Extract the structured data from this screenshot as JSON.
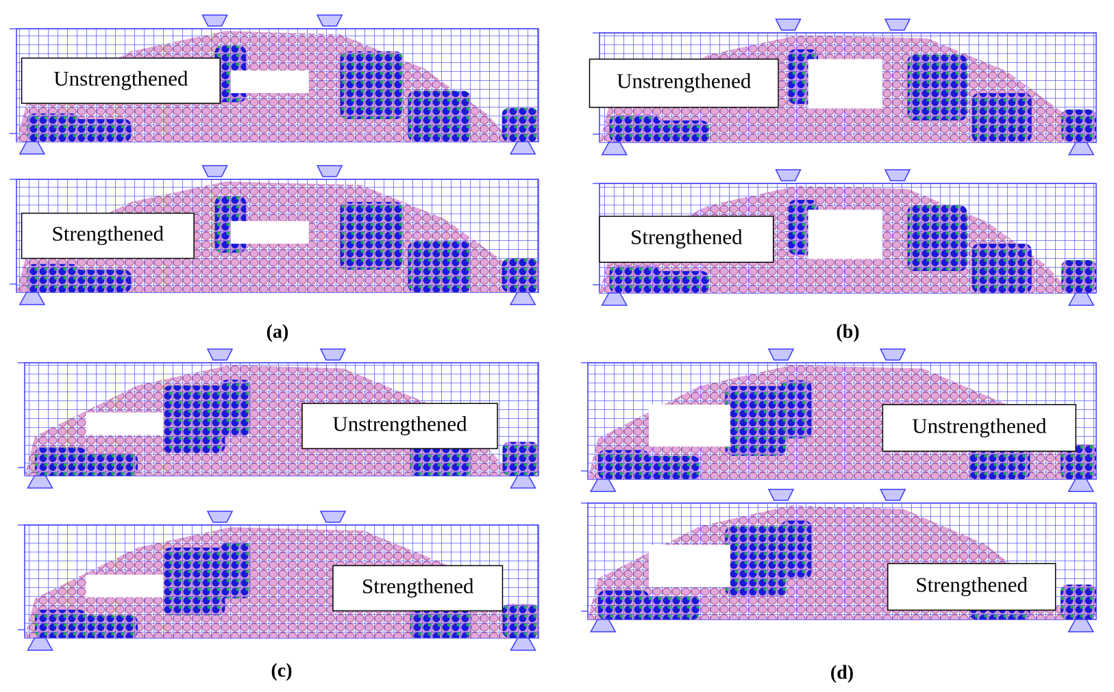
{
  "panels": [
    {
      "label": "(a)",
      "beams": [
        {
          "caption": "Unstrengthened"
        },
        {
          "caption": "Strengthened"
        }
      ]
    },
    {
      "label": "(b)",
      "beams": [
        {
          "caption": "Unstrengthened"
        },
        {
          "caption": "Strengthened"
        }
      ]
    },
    {
      "label": "(c)",
      "beams": [
        {
          "caption": "Unstrengthened"
        },
        {
          "caption": "Strengthened"
        }
      ]
    },
    {
      "label": "(d)",
      "beams": [
        {
          "caption": "Unstrengthened"
        },
        {
          "caption": "Strengthened"
        }
      ]
    }
  ]
}
